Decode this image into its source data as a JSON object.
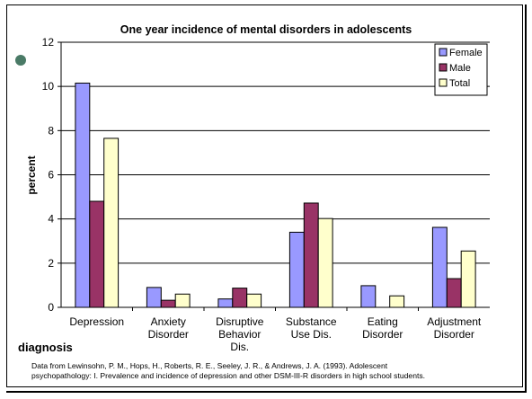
{
  "chart_data": {
    "type": "bar",
    "title": "One year incidence of mental disorders in adolescents",
    "xlabel": "diagnosis",
    "ylabel": "percent",
    "ylim": [
      0,
      12
    ],
    "yticks": [
      0,
      2,
      4,
      6,
      8,
      10,
      12
    ],
    "grid": true,
    "legend_position": "top-right",
    "categories": [
      [
        "Depression"
      ],
      [
        "Anxiety",
        "Disorder"
      ],
      [
        "Disruptive",
        "Behavior",
        "Dis."
      ],
      [
        "Substance",
        "Use Dis."
      ],
      [
        "Eating",
        "Disorder"
      ],
      [
        "Adjustment",
        "Disorder"
      ]
    ],
    "series": [
      {
        "name": "Female",
        "color": "#9999ff",
        "values": [
          10.15,
          0.9,
          0.38,
          3.4,
          0.98,
          3.62
        ]
      },
      {
        "name": "Male",
        "color": "#993366",
        "values": [
          4.8,
          0.32,
          0.87,
          4.72,
          0,
          1.3
        ]
      },
      {
        "name": "Total",
        "color": "#ffffcc",
        "values": [
          7.65,
          0.6,
          0.6,
          4.02,
          0.52,
          2.55
        ]
      }
    ]
  },
  "source_note": {
    "line1": "Data from Lewinsohn, P. M., Hops, H., Roberts, R. E., Seeley, J. R., & Andrews, J. A. (1993). Adolescent",
    "line2": "psychopathology: I. Prevalence and incidence of depression and other DSM-III-R disorders in high school students."
  }
}
